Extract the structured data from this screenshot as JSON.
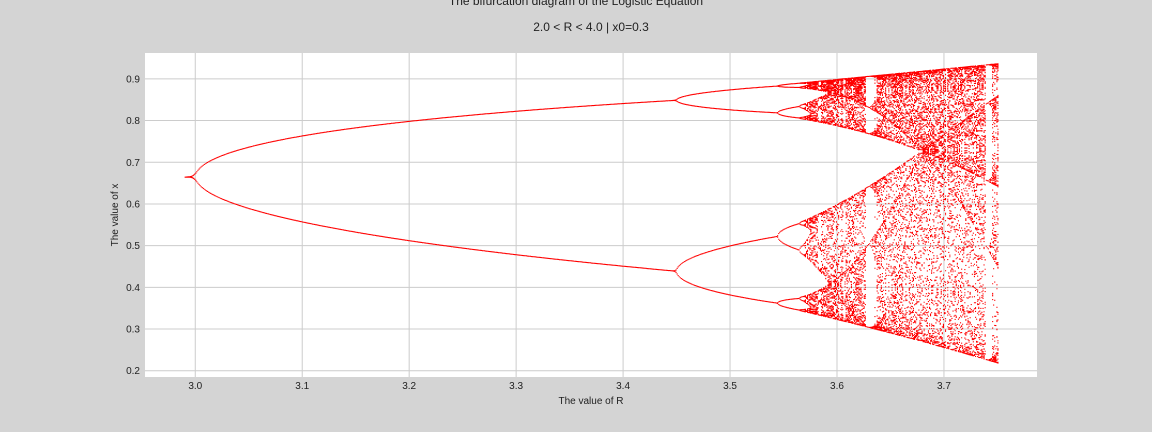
{
  "chart_data": {
    "type": "scatter",
    "title": "The bifurcation diagram of the Logistic Equation",
    "subtitle": "2.0 < R < 4.0  |  x0=0.3",
    "xlabel": "The value of R",
    "ylabel": "The value of x",
    "xlim": [
      2.953,
      3.787
    ],
    "ylim": [
      0.185,
      0.962
    ],
    "x_ticks": [
      "3.0",
      "3.1",
      "3.2",
      "3.3",
      "3.4",
      "3.5",
      "3.6",
      "3.7"
    ],
    "y_ticks": [
      "0.9",
      "0.8",
      "0.7",
      "0.6",
      "0.5",
      "0.4",
      "0.3",
      "0.2"
    ],
    "x0": 0.3,
    "r_start": 2.99,
    "r_end": 3.75,
    "grid": true,
    "legend": "none",
    "series": [
      {
        "marker_color": "#ff0000"
      }
    ],
    "colors": {
      "background": "#d4d4d4",
      "plot_area": "#ffffff",
      "grid": "#cccccc"
    }
  }
}
